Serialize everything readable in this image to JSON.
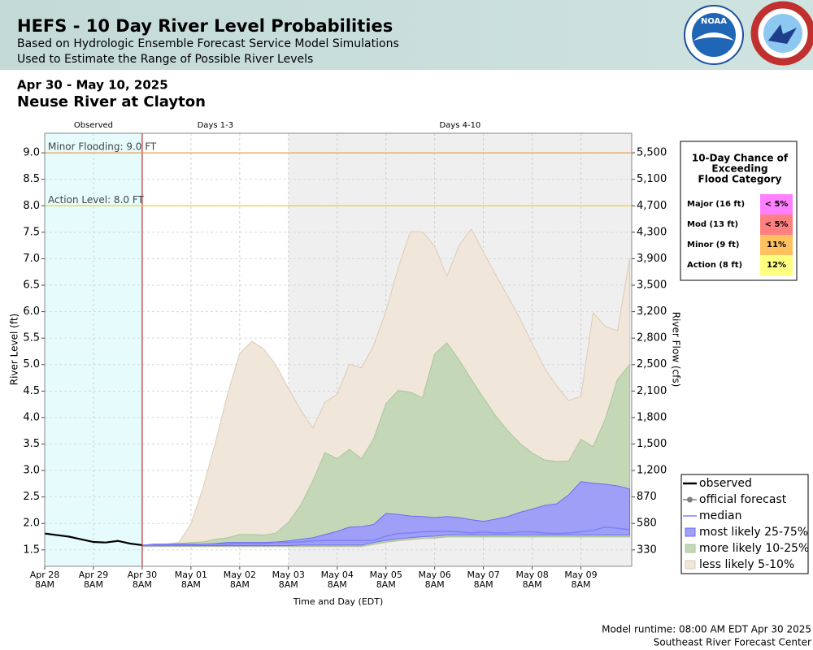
{
  "header": {
    "title": "HEFS - 10 Day River Level Probabilities",
    "subtitles": [
      "Based on Hydrologic Ensemble Forecast Service Model Simulations",
      "Used to Estimate the Range of Possible River Levels"
    ],
    "logo_text": "NOAA"
  },
  "chart_data": {
    "type": "probability-band",
    "date_range": "Apr 30 - May 10, 2025",
    "title": "Neuse River at Clayton",
    "xlabel": "Time and Day (EDT)",
    "ylabel": "River Level (ft)",
    "y2label": "River Flow (cfs)",
    "xlim": [
      "2025-04-28T08:00",
      "2025-05-10T09:00"
    ],
    "xticks": [
      {
        "value": "2025-04-28T08:00",
        "label": "Apr 28\n8AM"
      },
      {
        "value": "2025-04-29T08:00",
        "label": "Apr 29\n8AM"
      },
      {
        "value": "2025-04-30T08:00",
        "label": "Apr 30\n8AM"
      },
      {
        "value": "2025-05-01T08:00",
        "label": "May 01\n8AM"
      },
      {
        "value": "2025-05-02T08:00",
        "label": "May 02\n8AM"
      },
      {
        "value": "2025-05-03T08:00",
        "label": "May 03\n8AM"
      },
      {
        "value": "2025-05-04T08:00",
        "label": "May 04\n8AM"
      },
      {
        "value": "2025-05-05T08:00",
        "label": "May 05\n8AM"
      },
      {
        "value": "2025-05-06T08:00",
        "label": "May 06\n8AM"
      },
      {
        "value": "2025-05-07T08:00",
        "label": "May 07\n8AM"
      },
      {
        "value": "2025-05-08T08:00",
        "label": "May 08\n8AM"
      },
      {
        "value": "2025-05-09T08:00",
        "label": "May 09\n8AM"
      }
    ],
    "ylim": [
      1.19,
      9.37
    ],
    "yticks": [
      1.5,
      {
        "value": 2,
        "label": "2.0"
      },
      2.5,
      {
        "value": 3,
        "label": "3.0"
      },
      3.5,
      {
        "value": 4,
        "label": "4.0"
      },
      4.5,
      {
        "value": 5,
        "label": "5.0"
      },
      5.5,
      {
        "value": 6,
        "label": "6.0"
      },
      6.5,
      {
        "value": 7,
        "label": "7.0"
      },
      7.5,
      {
        "value": 8,
        "label": "8.0"
      },
      8.5,
      {
        "value": 9,
        "label": "9.0"
      }
    ],
    "y2ticks": [
      330,
      580,
      870,
      {
        "value": 1200,
        "label": "1,200"
      },
      {
        "value": 1500,
        "label": "1,500"
      },
      {
        "value": 1800,
        "label": "1,800"
      },
      {
        "value": 2100,
        "label": "2,100"
      },
      {
        "value": 2500,
        "label": "2,500"
      },
      {
        "value": 2800,
        "label": "2,800"
      },
      {
        "value": 3200,
        "label": "3,200"
      },
      {
        "value": 3500,
        "label": "3,500"
      },
      {
        "value": 3900,
        "label": "3,900"
      },
      {
        "value": 4300,
        "label": "4,300"
      },
      {
        "value": 4700,
        "label": "4,700"
      },
      {
        "value": 5100,
        "label": "5,100"
      },
      {
        "value": 5500,
        "label": "5,500"
      }
    ],
    "grid": true,
    "regions": [
      {
        "label": "Observed",
        "x": [
          "2025-04-28T08:00",
          "2025-04-30T08:00"
        ],
        "color": "#e6fcfc"
      },
      {
        "label": "Days 1-3",
        "x": [
          "2025-04-30T08:00",
          "2025-05-03T08:00"
        ],
        "color": "#ffffff"
      },
      {
        "label": "Days 4-10",
        "x": [
          "2025-05-03T08:00",
          "2025-05-10T09:00"
        ],
        "color": "#efefef"
      }
    ],
    "thresholds": [
      {
        "value": 9,
        "label": "Minor Flooding: 9.0 FT",
        "color": "#e8a050"
      },
      {
        "value": 8,
        "label": "Action Level: 8.0 FT",
        "color": "#e8d040"
      }
    ],
    "x": [
      "2025-04-30T08:00",
      "2025-04-30T14:00",
      "2025-04-30T20:00",
      "2025-05-01T02:00",
      "2025-05-01T08:00",
      "2025-05-01T14:00",
      "2025-05-01T20:00",
      "2025-05-02T02:00",
      "2025-05-02T08:00",
      "2025-05-02T14:00",
      "2025-05-02T20:00",
      "2025-05-03T02:00",
      "2025-05-03T08:00",
      "2025-05-03T14:00",
      "2025-05-03T20:00",
      "2025-05-04T02:00",
      "2025-05-04T08:00",
      "2025-05-04T14:00",
      "2025-05-04T20:00",
      "2025-05-05T02:00",
      "2025-05-05T08:00",
      "2025-05-05T14:00",
      "2025-05-05T20:00",
      "2025-05-06T02:00",
      "2025-05-06T08:00",
      "2025-05-06T14:00",
      "2025-05-06T20:00",
      "2025-05-07T02:00",
      "2025-05-07T08:00",
      "2025-05-07T14:00",
      "2025-05-07T20:00",
      "2025-05-08T02:00",
      "2025-05-08T08:00",
      "2025-05-08T14:00",
      "2025-05-08T20:00",
      "2025-05-09T02:00",
      "2025-05-09T08:00",
      "2025-05-09T14:00",
      "2025-05-09T20:00",
      "2025-05-10T02:00",
      "2025-05-10T08:00"
    ],
    "series": [
      {
        "name": "observed",
        "color": "#000000",
        "x": [
          "2025-04-28T08:00",
          "2025-04-28T14:00",
          "2025-04-28T20:00",
          "2025-04-29T02:00",
          "2025-04-29T08:00",
          "2025-04-29T14:00",
          "2025-04-29T20:00",
          "2025-04-30T02:00",
          "2025-04-30T08:00"
        ],
        "values": [
          1.81,
          1.78,
          1.75,
          1.7,
          1.65,
          1.64,
          1.67,
          1.62,
          1.59
        ]
      },
      {
        "name": "official forecast",
        "color": "#808080",
        "marker": "circle"
      },
      {
        "name": "median",
        "color": "#7f7fff",
        "values": [
          1.59,
          1.59,
          1.59,
          1.59,
          1.59,
          1.61,
          1.61,
          1.61,
          1.62,
          1.62,
          1.62,
          1.64,
          1.64,
          1.65,
          1.67,
          1.68,
          1.68,
          1.68,
          1.68,
          1.68,
          1.76,
          1.81,
          1.82,
          1.84,
          1.85,
          1.85,
          1.84,
          1.82,
          1.84,
          1.82,
          1.82,
          1.84,
          1.84,
          1.82,
          1.81,
          1.82,
          1.84,
          1.87,
          1.93,
          1.91,
          1.88
        ]
      },
      {
        "name": "most likely 25-75%",
        "color": "#9f9ff7",
        "edge": "#6c6cf0",
        "low": [
          1.58,
          1.58,
          1.58,
          1.58,
          1.58,
          1.58,
          1.58,
          1.58,
          1.58,
          1.58,
          1.58,
          1.58,
          1.58,
          1.59,
          1.59,
          1.59,
          1.59,
          1.59,
          1.59,
          1.64,
          1.68,
          1.71,
          1.73,
          1.75,
          1.76,
          1.78,
          1.78,
          1.78,
          1.78,
          1.78,
          1.78,
          1.78,
          1.78,
          1.78,
          1.78,
          1.78,
          1.78,
          1.78,
          1.78,
          1.78,
          1.78
        ],
        "high": [
          1.59,
          1.61,
          1.61,
          1.61,
          1.61,
          1.61,
          1.62,
          1.64,
          1.64,
          1.64,
          1.64,
          1.65,
          1.67,
          1.7,
          1.73,
          1.79,
          1.85,
          1.93,
          1.94,
          1.98,
          2.19,
          2.17,
          2.14,
          2.13,
          2.11,
          2.13,
          2.11,
          2.07,
          2.04,
          2.08,
          2.13,
          2.21,
          2.27,
          2.34,
          2.37,
          2.54,
          2.79,
          2.76,
          2.74,
          2.71,
          2.65
        ]
      },
      {
        "name": "more likely 10-25%",
        "color": "#c4d8b8",
        "edge": "#a8c49a",
        "low": [
          1.57,
          1.57,
          1.57,
          1.57,
          1.57,
          1.57,
          1.57,
          1.57,
          1.57,
          1.57,
          1.57,
          1.57,
          1.57,
          1.57,
          1.57,
          1.57,
          1.57,
          1.57,
          1.57,
          1.61,
          1.65,
          1.68,
          1.7,
          1.72,
          1.73,
          1.75,
          1.75,
          1.75,
          1.75,
          1.75,
          1.75,
          1.75,
          1.75,
          1.75,
          1.75,
          1.75,
          1.75,
          1.75,
          1.75,
          1.75,
          1.75
        ],
        "high": [
          1.59,
          1.59,
          1.61,
          1.62,
          1.64,
          1.65,
          1.7,
          1.73,
          1.79,
          1.79,
          1.78,
          1.82,
          2.02,
          2.34,
          2.8,
          3.34,
          3.22,
          3.4,
          3.22,
          3.6,
          4.26,
          4.51,
          4.48,
          4.37,
          5.2,
          5.41,
          5.09,
          4.72,
          4.37,
          4.03,
          3.75,
          3.51,
          3.33,
          3.2,
          3.17,
          3.18,
          3.59,
          3.45,
          3.97,
          4.72,
          5.0
        ]
      },
      {
        "name": "less likely 5-10%",
        "color": "#f0e6da",
        "edge": "#dccbb6",
        "low": [
          1.56,
          1.56,
          1.56,
          1.56,
          1.56,
          1.56,
          1.56,
          1.56,
          1.56,
          1.56,
          1.56,
          1.56,
          1.56,
          1.56,
          1.56,
          1.56,
          1.56,
          1.56,
          1.56,
          1.6,
          1.64,
          1.67,
          1.69,
          1.71,
          1.72,
          1.74,
          1.74,
          1.74,
          1.74,
          1.74,
          1.74,
          1.74,
          1.74,
          1.74,
          1.74,
          1.74,
          1.74,
          1.74,
          1.74,
          1.74,
          1.74
        ],
        "high": [
          1.59,
          1.59,
          1.61,
          1.64,
          1.99,
          2.68,
          3.52,
          4.44,
          5.21,
          5.44,
          5.29,
          4.98,
          4.55,
          4.14,
          3.8,
          4.29,
          4.44,
          5.01,
          4.94,
          5.37,
          6.01,
          6.82,
          7.51,
          7.51,
          7.24,
          6.67,
          7.25,
          7.56,
          7.13,
          6.7,
          6.29,
          5.87,
          5.4,
          4.94,
          4.6,
          4.32,
          4.4,
          5.98,
          5.72,
          5.64,
          7.01
        ]
      }
    ]
  },
  "flood_chance": {
    "title": [
      "10-Day Chance of",
      "Exceeding",
      "Flood Category"
    ],
    "rows": [
      {
        "category": "Major (16 ft)",
        "chance": "< 5%",
        "color": "#ff80ff"
      },
      {
        "category": "Mod (13 ft)",
        "chance": "< 5%",
        "color": "#ff8080"
      },
      {
        "category": "Minor (9 ft)",
        "chance": "11%",
        "color": "#ffc060"
      },
      {
        "category": "Action (8 ft)",
        "chance": "12%",
        "color": "#ffff80"
      }
    ]
  },
  "footer": [
    "Model runtime: 08:00 AM EDT Apr 30 2025",
    "Southeast River Forecast Center"
  ]
}
